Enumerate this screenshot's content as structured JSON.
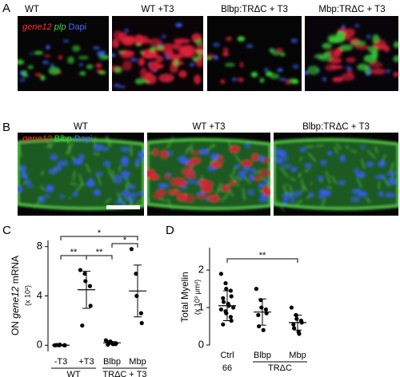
{
  "panels": {
    "A": {
      "letter": "A",
      "titles": [
        "WT",
        "WT +T3",
        "Blbp:TRΔC + T3",
        "Mbp:TRΔC + T3"
      ],
      "legend": [
        "gene12",
        "plp",
        "Dapi"
      ]
    },
    "B": {
      "letter": "B",
      "titles": [
        "WT",
        "WT +T3",
        "Blbp:TRΔC + T3"
      ],
      "legend": [
        "gene12",
        "Blbp",
        "Dapi"
      ]
    }
  },
  "chart_data": [
    {
      "type": "dotplot",
      "letter": "C",
      "ylabel": [
        "ON ",
        "gene12",
        " mRNA"
      ],
      "ylabel_unit": "(x 10²)",
      "categories": [
        "-T3",
        "+T3",
        "Blbp",
        "Mbp"
      ],
      "group_labels": [
        "WT",
        "TRΔC + T3"
      ],
      "values": [
        [
          0,
          0,
          0.05,
          0,
          0,
          0.02
        ],
        [
          6.1,
          5.8,
          5.2,
          4.8,
          3.2,
          1.6
        ],
        [
          0.4,
          0.3,
          0.2,
          0.1,
          0.15,
          0.05,
          0.25,
          0.1
        ],
        [
          7.8,
          5.8,
          4.0,
          2.6,
          1.8
        ]
      ],
      "means": [
        0,
        4.5,
        0.2,
        4.4
      ],
      "errors": [
        0.05,
        1.5,
        0.1,
        2.1
      ],
      "ylim": [
        -0.5,
        8.5
      ],
      "yticks": [
        0,
        4,
        8
      ],
      "significance": [
        "**",
        "**",
        "*",
        "*"
      ],
      "color": "#000000"
    },
    {
      "type": "dotplot",
      "letter": "D",
      "ylabel": [
        "Total Myelin "
      ],
      "ylabel_unit": "(x 10³ μm²)",
      "categories": [
        "Ctrl",
        "Blbp",
        "Mbp"
      ],
      "group_labels": [
        "66",
        "TRΔC"
      ],
      "values": [
        [
          1.9,
          1.65,
          1.5,
          1.45,
          1.3,
          1.25,
          1.15,
          1.1,
          1.05,
          1.0,
          0.95,
          0.9,
          0.85,
          0.75,
          0.65,
          0.55
        ],
        [
          1.5,
          1.2,
          1.0,
          0.95,
          0.85,
          0.8,
          0.5,
          0.4
        ],
        [
          1.0,
          0.8,
          0.7,
          0.65,
          0.6,
          0.55,
          0.45,
          0.35,
          0.3
        ]
      ],
      "means": [
        1.05,
        0.88,
        0.6
      ],
      "errors": [
        0.4,
        0.35,
        0.2
      ],
      "ylim": [
        0,
        2.6
      ],
      "yticks": [
        0,
        1,
        2
      ],
      "significance": [
        "**"
      ],
      "color": "#000000"
    }
  ]
}
